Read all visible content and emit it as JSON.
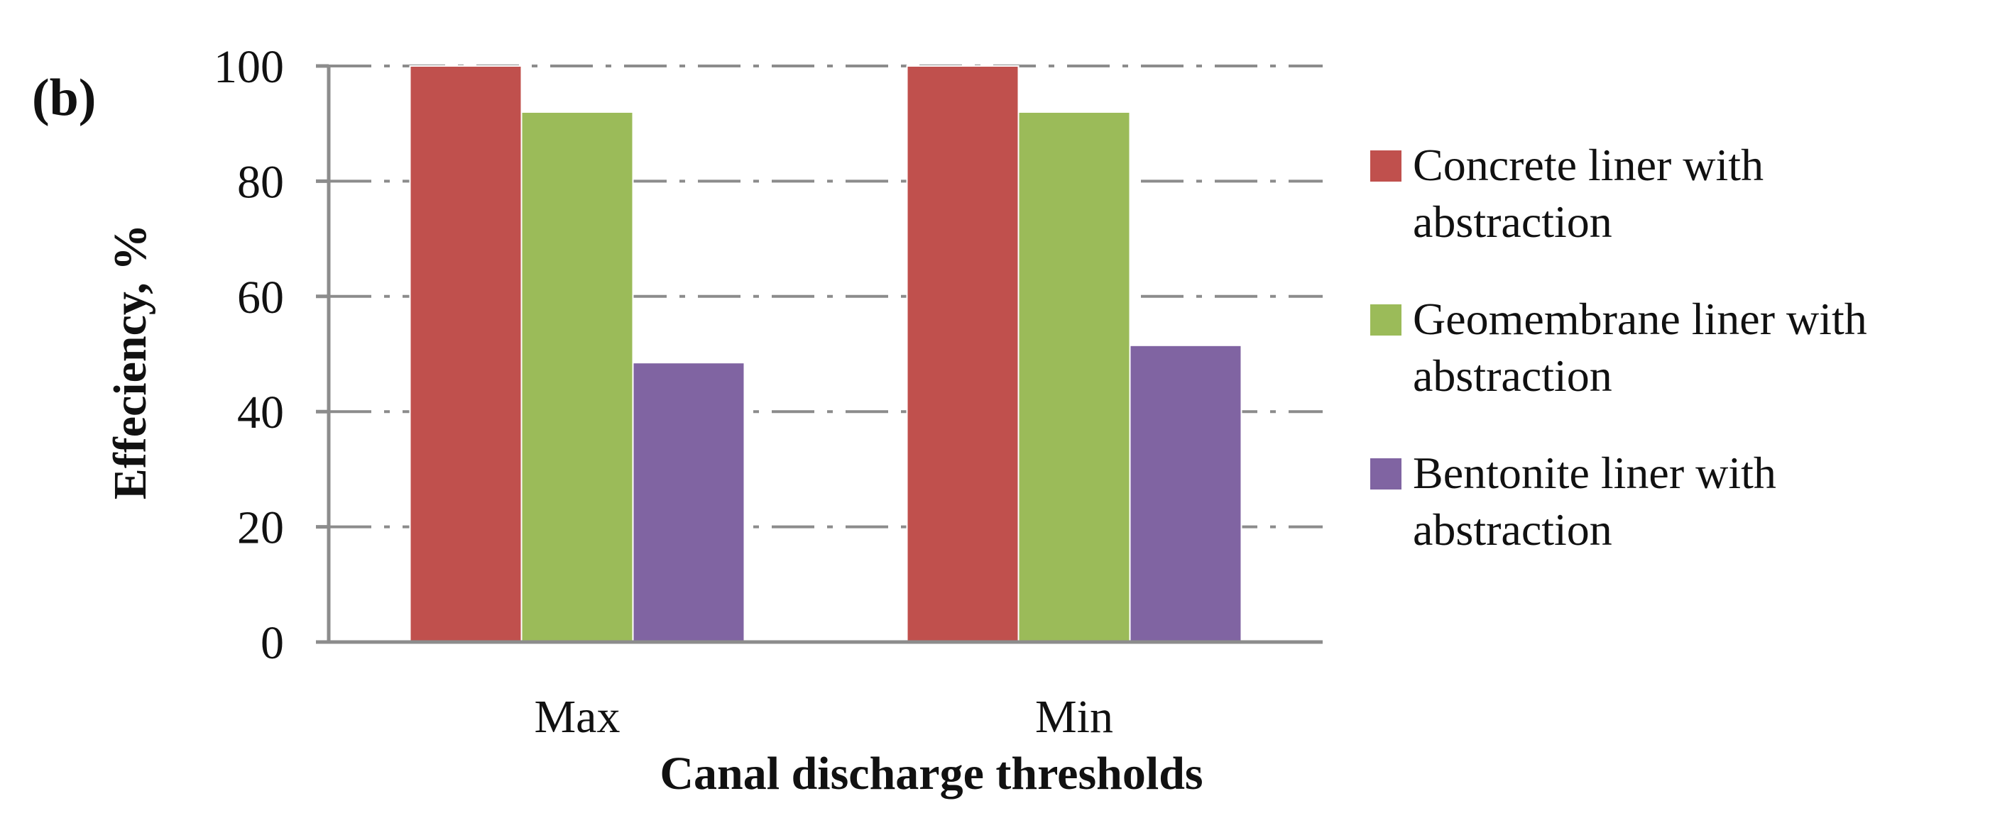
{
  "panel_label": "(b)",
  "chart_data": {
    "type": "bar",
    "categories": [
      "Max",
      "Min"
    ],
    "series": [
      {
        "name": "Concrete liner with abstraction",
        "values": [
          100,
          100
        ],
        "color": "#c0504d"
      },
      {
        "name": "Geomembrane liner with abstraction",
        "values": [
          92,
          92
        ],
        "color": "#9bbb59"
      },
      {
        "name": "Bentonite liner with abstraction",
        "values": [
          48.5,
          51.5
        ],
        "color": "#8064a2"
      }
    ],
    "ylim": [
      0,
      100
    ],
    "yticks": [
      "0",
      "20",
      "40",
      "60",
      "80",
      "100"
    ],
    "xlabel": "Canal discharge thresholds",
    "ylabel": "Effeciency, %",
    "grid": true,
    "legend_position": "right",
    "legend_lines": [
      [
        "Concrete liner with",
        "abstraction"
      ],
      [
        "Geomembrane liner with",
        "abstraction"
      ],
      [
        "Bentonite liner with",
        "abstraction"
      ]
    ]
  }
}
